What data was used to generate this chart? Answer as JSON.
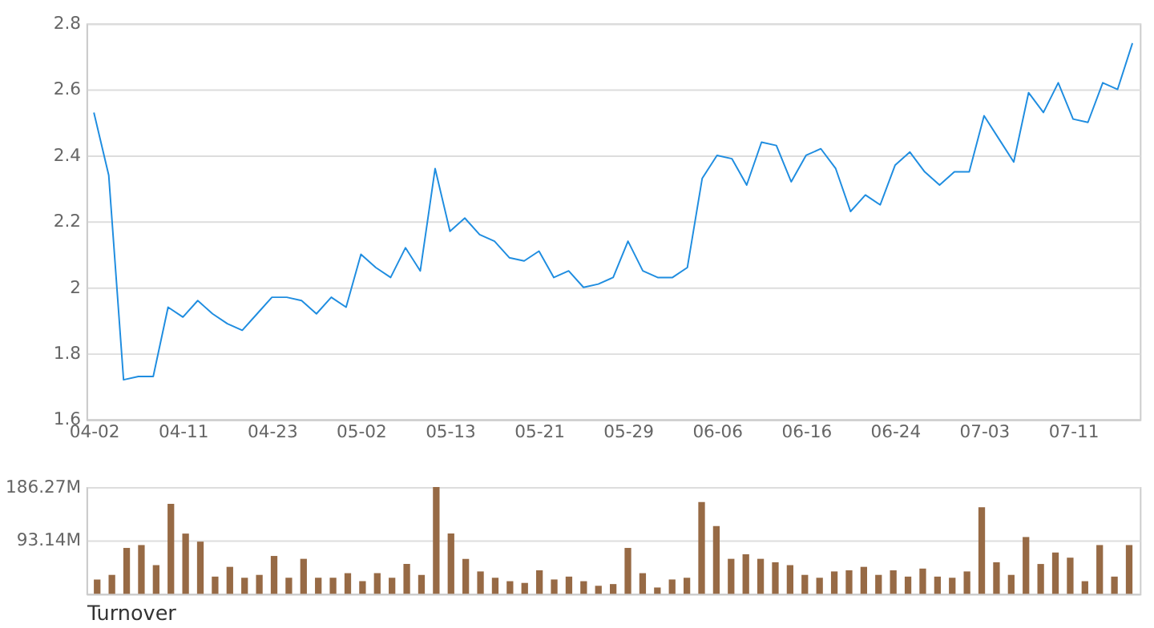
{
  "chart_data": [
    {
      "type": "line",
      "color": "#1f8de0",
      "ylim": [
        1.6,
        2.8
      ],
      "yticks": [
        1.6,
        1.8,
        2,
        2.2,
        2.4,
        2.6,
        2.8
      ],
      "grid": "y",
      "categories": [
        "04-02",
        null,
        null,
        null,
        null,
        null,
        "04-11",
        null,
        null,
        null,
        null,
        null,
        "04-23",
        null,
        null,
        null,
        null,
        null,
        "05-02",
        null,
        null,
        null,
        null,
        null,
        "05-13",
        null,
        null,
        null,
        null,
        null,
        "05-21",
        null,
        null,
        null,
        null,
        null,
        "05-29",
        null,
        null,
        null,
        null,
        null,
        "06-06",
        null,
        null,
        null,
        null,
        null,
        "06-16",
        null,
        null,
        null,
        null,
        null,
        "06-24",
        null,
        null,
        null,
        null,
        null,
        "07-03",
        null,
        null,
        null,
        null,
        null,
        "07-11",
        null,
        null,
        null,
        null
      ],
      "values": [
        2.53,
        2.34,
        1.72,
        1.73,
        1.73,
        1.94,
        1.91,
        1.96,
        1.92,
        1.89,
        1.87,
        1.92,
        1.97,
        1.97,
        1.96,
        1.92,
        1.97,
        1.94,
        2.1,
        2.06,
        2.03,
        2.12,
        2.05,
        2.36,
        2.17,
        2.21,
        2.16,
        2.14,
        2.09,
        2.08,
        2.11,
        2.03,
        2.05,
        2.0,
        2.01,
        2.03,
        2.14,
        2.05,
        2.03,
        2.03,
        2.06,
        2.33,
        2.4,
        2.39,
        2.31,
        2.44,
        2.43,
        2.32,
        2.4,
        2.42,
        2.36,
        2.23,
        2.28,
        2.25,
        2.37,
        2.41,
        2.35,
        2.31,
        2.35,
        2.35,
        2.52,
        2.45,
        2.38,
        2.59,
        2.53,
        2.62,
        2.51,
        2.5,
        2.62,
        2.6,
        2.74
      ]
    },
    {
      "type": "bar",
      "color": "#976a45",
      "xlabel": "Turnover",
      "ylim": [
        0,
        186.27
      ],
      "yticks": [
        {
          "value": 0,
          "label": null
        },
        {
          "value": 93.14,
          "label": "93.14M"
        },
        {
          "value": 186.27,
          "label": "186.27M"
        }
      ],
      "grid": "y",
      "tick_labels": "y",
      "categories": [
        null,
        null,
        null,
        null,
        null,
        null,
        null,
        null,
        null,
        null,
        null,
        null,
        null,
        null,
        null,
        null,
        null,
        null,
        null,
        null,
        null,
        null,
        null,
        null,
        null,
        null,
        null,
        null,
        null,
        null,
        null,
        null,
        null,
        null,
        null,
        null,
        null,
        null,
        null,
        null,
        null,
        null,
        null,
        null,
        null,
        null,
        null,
        null,
        null,
        null,
        null,
        null,
        null,
        null,
        null,
        null,
        null,
        null,
        null,
        null,
        null,
        null,
        null,
        null,
        null,
        null,
        null,
        null,
        null,
        null,
        null
      ],
      "values": [
        25,
        33,
        80,
        85,
        50,
        157,
        105,
        91,
        30,
        47,
        28,
        33,
        66,
        28,
        61,
        28,
        28,
        36,
        22,
        36,
        28,
        52,
        33,
        186,
        105,
        61,
        39,
        28,
        22,
        19,
        41,
        25,
        30,
        22,
        14,
        17,
        80,
        36,
        11,
        25,
        28,
        160,
        118,
        61,
        69,
        61,
        55,
        50,
        33,
        28,
        39,
        41,
        47,
        33,
        41,
        30,
        44,
        30,
        28,
        39,
        151,
        55,
        33,
        99,
        52,
        72,
        63,
        22,
        85,
        30,
        85
      ]
    }
  ]
}
